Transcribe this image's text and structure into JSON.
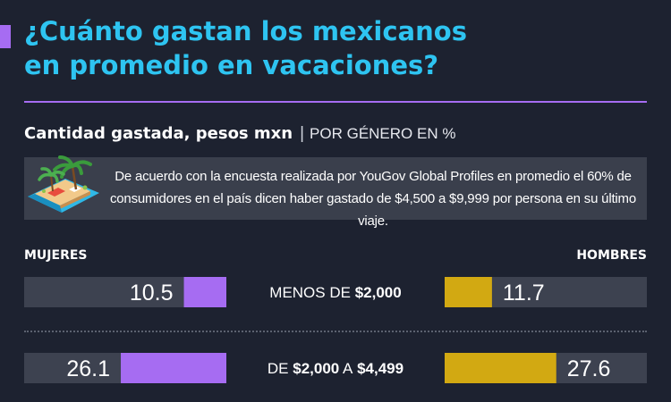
{
  "title_line1": "¿Cuánto gastan los mexicanos",
  "title_line2": "en promedio en vacaciones?",
  "subtitle_main": "Cantidad gastada, pesos mxn",
  "subtitle_sep": "|",
  "subtitle_secondary": "POR GÉNERO EN %",
  "info_text": "De acuerdo con la encuesta realizada por YouGov Global Profiles en promedio el 60% de consumidores en el país dicen haber gastado de $4,500 a $9,999 por persona en su último viaje.",
  "icons": {
    "accent": "purple-square-icon",
    "illustration": "beach-island-icon"
  },
  "colors": {
    "background": "#1d2230",
    "title": "#2ec4f1",
    "accent": "#a66cf2",
    "women": "#a66cf2",
    "men": "#d2a912",
    "bar_track": "#3d4250",
    "info_box": "#3a3f4c"
  },
  "chart_data": {
    "type": "bar",
    "orientation": "horizontal-diverging",
    "unit": "%",
    "series": [
      {
        "name": "MUJERES",
        "values": [
          10.5,
          26.1
        ]
      },
      {
        "name": "HOMBRES",
        "values": [
          11.7,
          27.6
        ]
      }
    ],
    "categories": [
      {
        "pre": "MENOS DE",
        "amount": "$2,000"
      },
      {
        "pre": "DE",
        "amount": "$2,000",
        "mid": "A",
        "amount2": "$4,499"
      }
    ],
    "xlim": [
      0,
      50
    ]
  }
}
